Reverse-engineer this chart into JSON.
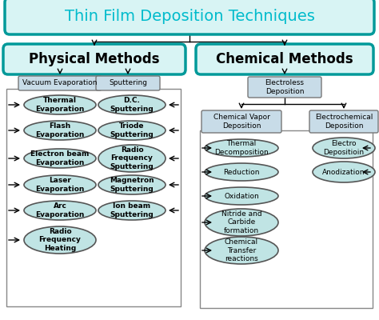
{
  "title": "Thin Film Deposition Techniques",
  "title_color": "#00BBCC",
  "bg_color": "#FFFFFF",
  "teal_border": "#009999",
  "box_bg_light": "#D8F4F4",
  "rect_bg": "#C8DCE8",
  "ellipse_bg": "#C0E4E4",
  "phys_title": "Physical Methods",
  "chem_title": "Chemical Methods",
  "phys_sub1": "Vacuum Evaporation",
  "phys_sub2": "Sputtering",
  "phys_left": [
    "Thermal\nEvaporation",
    "Flash\nEvaporation",
    "Electron beam\nEvaporation",
    "Laser\nEvaporation",
    "Arc\nEvaporation",
    "Radio\nFrequency\nHeating"
  ],
  "phys_right": [
    "D.C.\nSputtering",
    "Triode\nSputtering",
    "Radio\nFrequency\nSputtering",
    "Magnetron\nSputtering",
    "Ion beam\nSputtering"
  ],
  "chem_sub_top": "Electroless\nDeposition",
  "chem_sub_left": "Chemical Vapor\nDeposition",
  "chem_sub_right": "Electrochemical\nDeposition",
  "chem_left": [
    "Thermal\nDecomposition",
    "Reduction",
    "Oxidation",
    "Nitride and\nCarbide\nformation",
    "Chemical\nTransfer\nreactions"
  ],
  "chem_right": [
    "Electro\nDepositioin",
    "Anodization"
  ]
}
